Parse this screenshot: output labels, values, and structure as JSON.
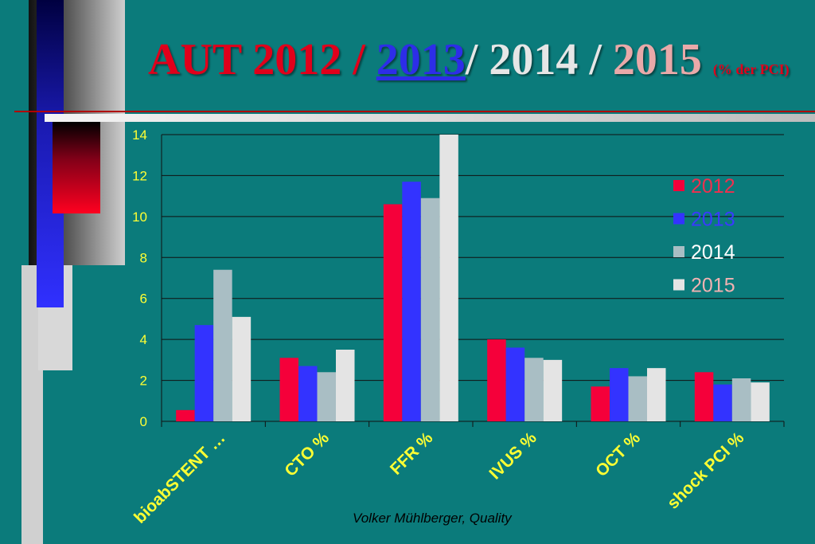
{
  "title": {
    "prefix": "AUT",
    "y2012": "2012",
    "sep1": " / ",
    "y2013": "2013",
    "sep2": "/ 2014 / ",
    "y2015": "2015",
    "suffix": "(% der PCI)"
  },
  "colors": {
    "background": "#0b7b7b",
    "prefix": "#e0001b",
    "y2012": "#e0001b",
    "y2013": "#2d2de8",
    "sep": "#e6e6e6",
    "y2015": "#e9a9a9",
    "axis_text": "#ffff33"
  },
  "footer": "Volker Mühlberger, Quality",
  "chart_data": {
    "type": "bar",
    "categories": [
      "bioabSTENT …",
      "CTO %",
      "FFR %",
      "IVUS %",
      "OCT %",
      "shock PCI %"
    ],
    "series": [
      {
        "name": "2012",
        "color": "#f5003a",
        "legend_color": "#f0304e",
        "values": [
          0.55,
          3.1,
          10.6,
          4.0,
          1.7,
          2.4
        ]
      },
      {
        "name": "2013",
        "color": "#3333ff",
        "legend_color": "#3a3aff",
        "values": [
          4.7,
          2.7,
          11.7,
          3.6,
          2.6,
          1.8
        ]
      },
      {
        "name": "2014",
        "color": "#a9bec4",
        "legend_color": "#ffffff",
        "values": [
          7.4,
          2.4,
          10.9,
          3.1,
          2.2,
          2.1
        ]
      },
      {
        "name": "2015",
        "color": "#e4e4e4",
        "legend_color": "#f2b2b2",
        "values": [
          5.1,
          3.5,
          14.0,
          3.0,
          2.6,
          1.9
        ]
      }
    ],
    "ylim": [
      0,
      14
    ],
    "yticks": [
      0,
      2,
      4,
      6,
      8,
      10,
      12,
      14
    ],
    "grid": true,
    "legend": "right",
    "xlabel": "",
    "ylabel": ""
  }
}
